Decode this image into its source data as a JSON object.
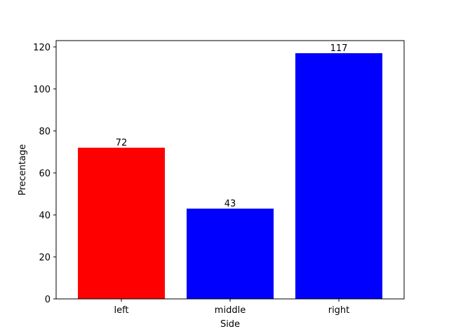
{
  "chart_data": {
    "type": "bar",
    "categories": [
      "left",
      "middle",
      "right"
    ],
    "values": [
      72,
      43,
      117
    ],
    "colors": [
      "#ff0000",
      "#0000ff",
      "#0000ff"
    ],
    "title": "",
    "xlabel": "Side",
    "ylabel": "Precentage",
    "ylim": [
      0,
      123
    ],
    "yticks": [
      0,
      20,
      40,
      60,
      80,
      100,
      120
    ],
    "data_labels": [
      "72",
      "43",
      "117"
    ],
    "grid": false,
    "legend": "none"
  }
}
